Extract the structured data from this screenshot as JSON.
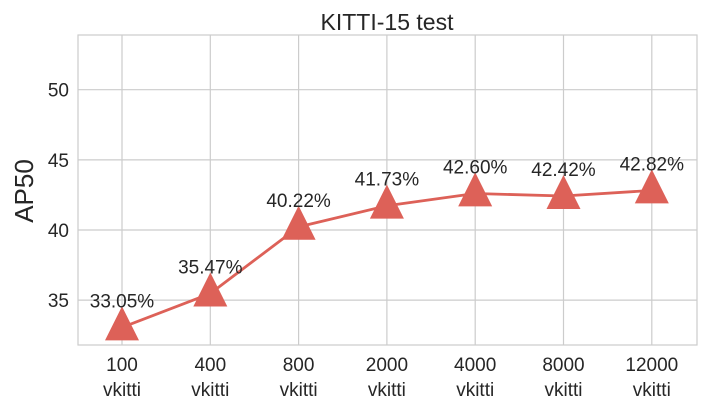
{
  "chart_data": {
    "type": "line",
    "title": "KITTI-15 test",
    "xlabel": "",
    "ylabel": "AP50",
    "categories": [
      "100\nvkitti",
      "400\nvkitti",
      "800\nvkitti",
      "2000\nvkitti",
      "4000\nvkitti",
      "8000\nvkitti",
      "12000\nvkitti"
    ],
    "series": [
      {
        "values": [
          33.05,
          35.47,
          40.22,
          41.73,
          42.6,
          42.42,
          42.82
        ],
        "labels": [
          "33.05%",
          "35.47%",
          "40.22%",
          "41.73%",
          "42.60%",
          "42.42%",
          "42.82%"
        ],
        "marker": "triangle-up",
        "color": "#dd6158"
      }
    ],
    "yticks": [
      35,
      40,
      45,
      50
    ],
    "ylim": [
      31.8,
      53.9
    ],
    "grid": true,
    "legend": "none"
  }
}
